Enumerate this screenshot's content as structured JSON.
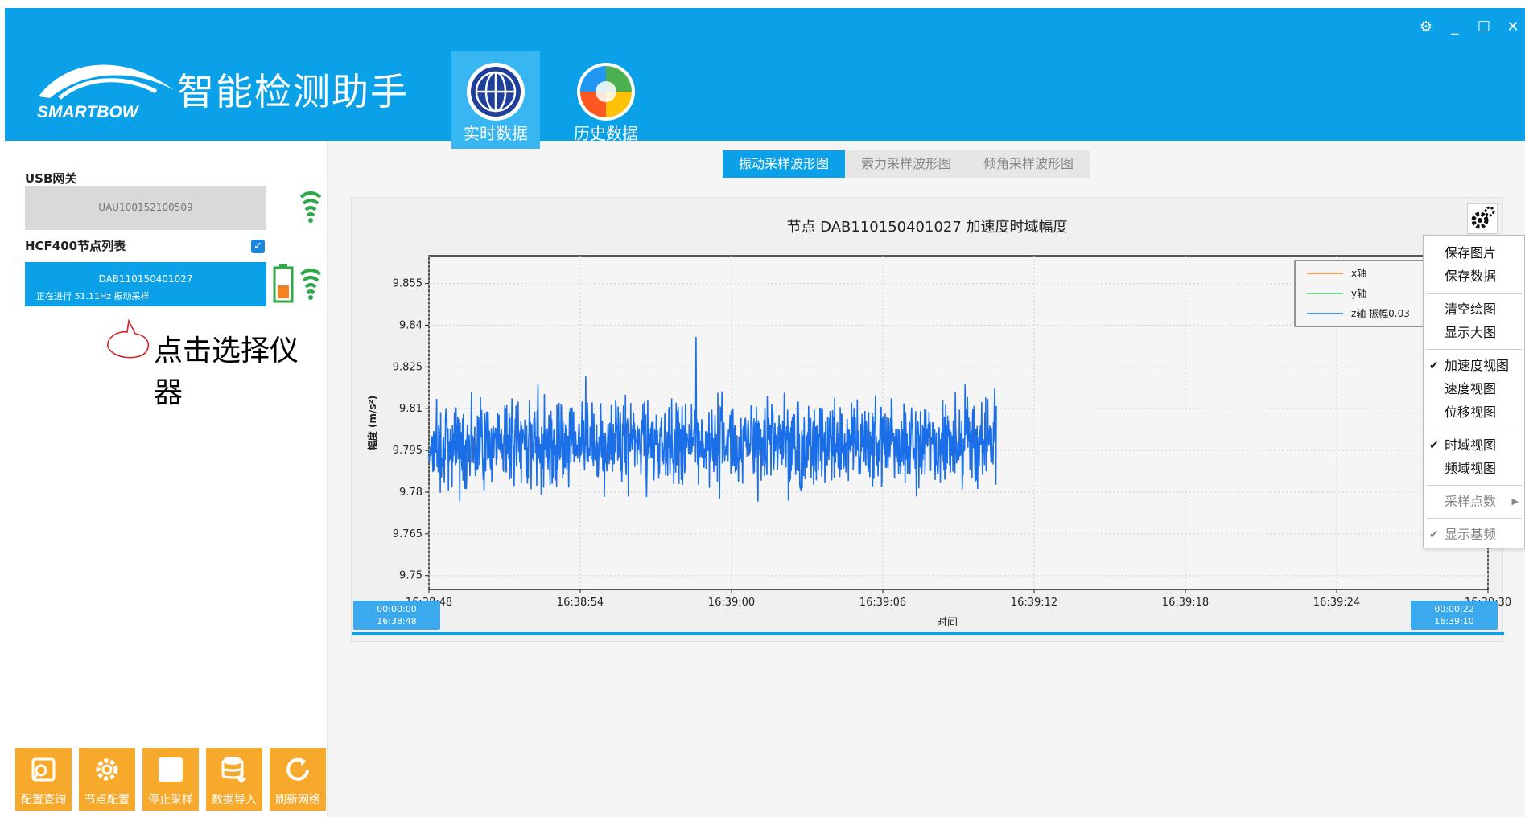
{
  "header": {
    "logo_text": "SMARTBOW",
    "title": "智能检测助手",
    "tabs": [
      {
        "label": "实时数据",
        "active": true
      },
      {
        "label": "历史数据",
        "active": false
      }
    ],
    "window_controls": {
      "settings": "⚙",
      "minimize": "_",
      "maximize": "☐",
      "close": "✕"
    }
  },
  "sidebar": {
    "usb_label": "USB网关",
    "gateway_id": "UAU100152100509",
    "node_list_label": "HCF400节点列表",
    "node": {
      "id": "DAB110150401027",
      "status": "正在进行 51.11Hz 振动采样"
    },
    "annotation": "点击选择仪器"
  },
  "toolbar": [
    {
      "label": "配置查询",
      "icon": "config-query-icon"
    },
    {
      "label": "节点配置",
      "icon": "gear-icon"
    },
    {
      "label": "停止采样",
      "icon": "stop-icon"
    },
    {
      "label": "数据导入",
      "icon": "database-import-icon"
    },
    {
      "label": "刷新网络",
      "icon": "refresh-icon"
    }
  ],
  "chart_tabs": [
    {
      "label": "振动采样波形图",
      "active": true
    },
    {
      "label": "索力采样波形图",
      "active": false
    },
    {
      "label": "倾角采样波形图",
      "active": false
    }
  ],
  "chart_data": {
    "type": "line",
    "title": "节点 DAB110150401027 加速度时域幅度",
    "xlabel": "时间",
    "ylabel": "幅度 (m/s²)",
    "ylim": [
      9.745,
      9.865
    ],
    "y_ticks": [
      "9.855",
      "9.84",
      "9.825",
      "9.81",
      "9.795",
      "9.78",
      "9.765",
      "9.75"
    ],
    "x_ticks": [
      "16:38:48",
      "16:38:54",
      "16:39:00",
      "16:39:06",
      "16:39:12",
      "16:39:18",
      "16:39:24",
      "16:39:30"
    ],
    "x_range_seconds": [
      0,
      42
    ],
    "data_end_seconds": 22.5,
    "z_center": 9.798,
    "z_amplitude": 0.03,
    "grid": true,
    "legend_placement": "top-right",
    "series": [
      {
        "name": "x轴",
        "color": "#f08030"
      },
      {
        "name": "y轴",
        "color": "#40d060"
      },
      {
        "name": "z轴 振幅0.03",
        "color": "#1a6ee8"
      }
    ],
    "range_start": {
      "offset": "00:00:00",
      "time": "16:38:48"
    },
    "range_end": {
      "offset": "00:00:22",
      "time": "16:39:10"
    }
  },
  "context_menu": {
    "items": [
      {
        "label": "保存图片",
        "checked": false,
        "disabled": false
      },
      {
        "label": "保存数据",
        "checked": false,
        "disabled": false
      },
      {
        "label": "清空绘图",
        "checked": false,
        "disabled": false
      },
      {
        "label": "显示大图",
        "checked": false,
        "disabled": false
      },
      {
        "label": "加速度视图",
        "checked": true,
        "disabled": false
      },
      {
        "label": "速度视图",
        "checked": false,
        "disabled": false
      },
      {
        "label": "位移视图",
        "checked": false,
        "disabled": false
      },
      {
        "label": "时域视图",
        "checked": true,
        "disabled": false
      },
      {
        "label": "频域视图",
        "checked": false,
        "disabled": false
      },
      {
        "label": "采样点数",
        "checked": false,
        "disabled": true,
        "submenu": true
      },
      {
        "label": "显示基频",
        "checked": true,
        "disabled": true
      }
    ]
  },
  "colors": {
    "accent": "#0aa1e9",
    "toolbar": "#f7a92c",
    "signal_green": "#2ea84a"
  }
}
